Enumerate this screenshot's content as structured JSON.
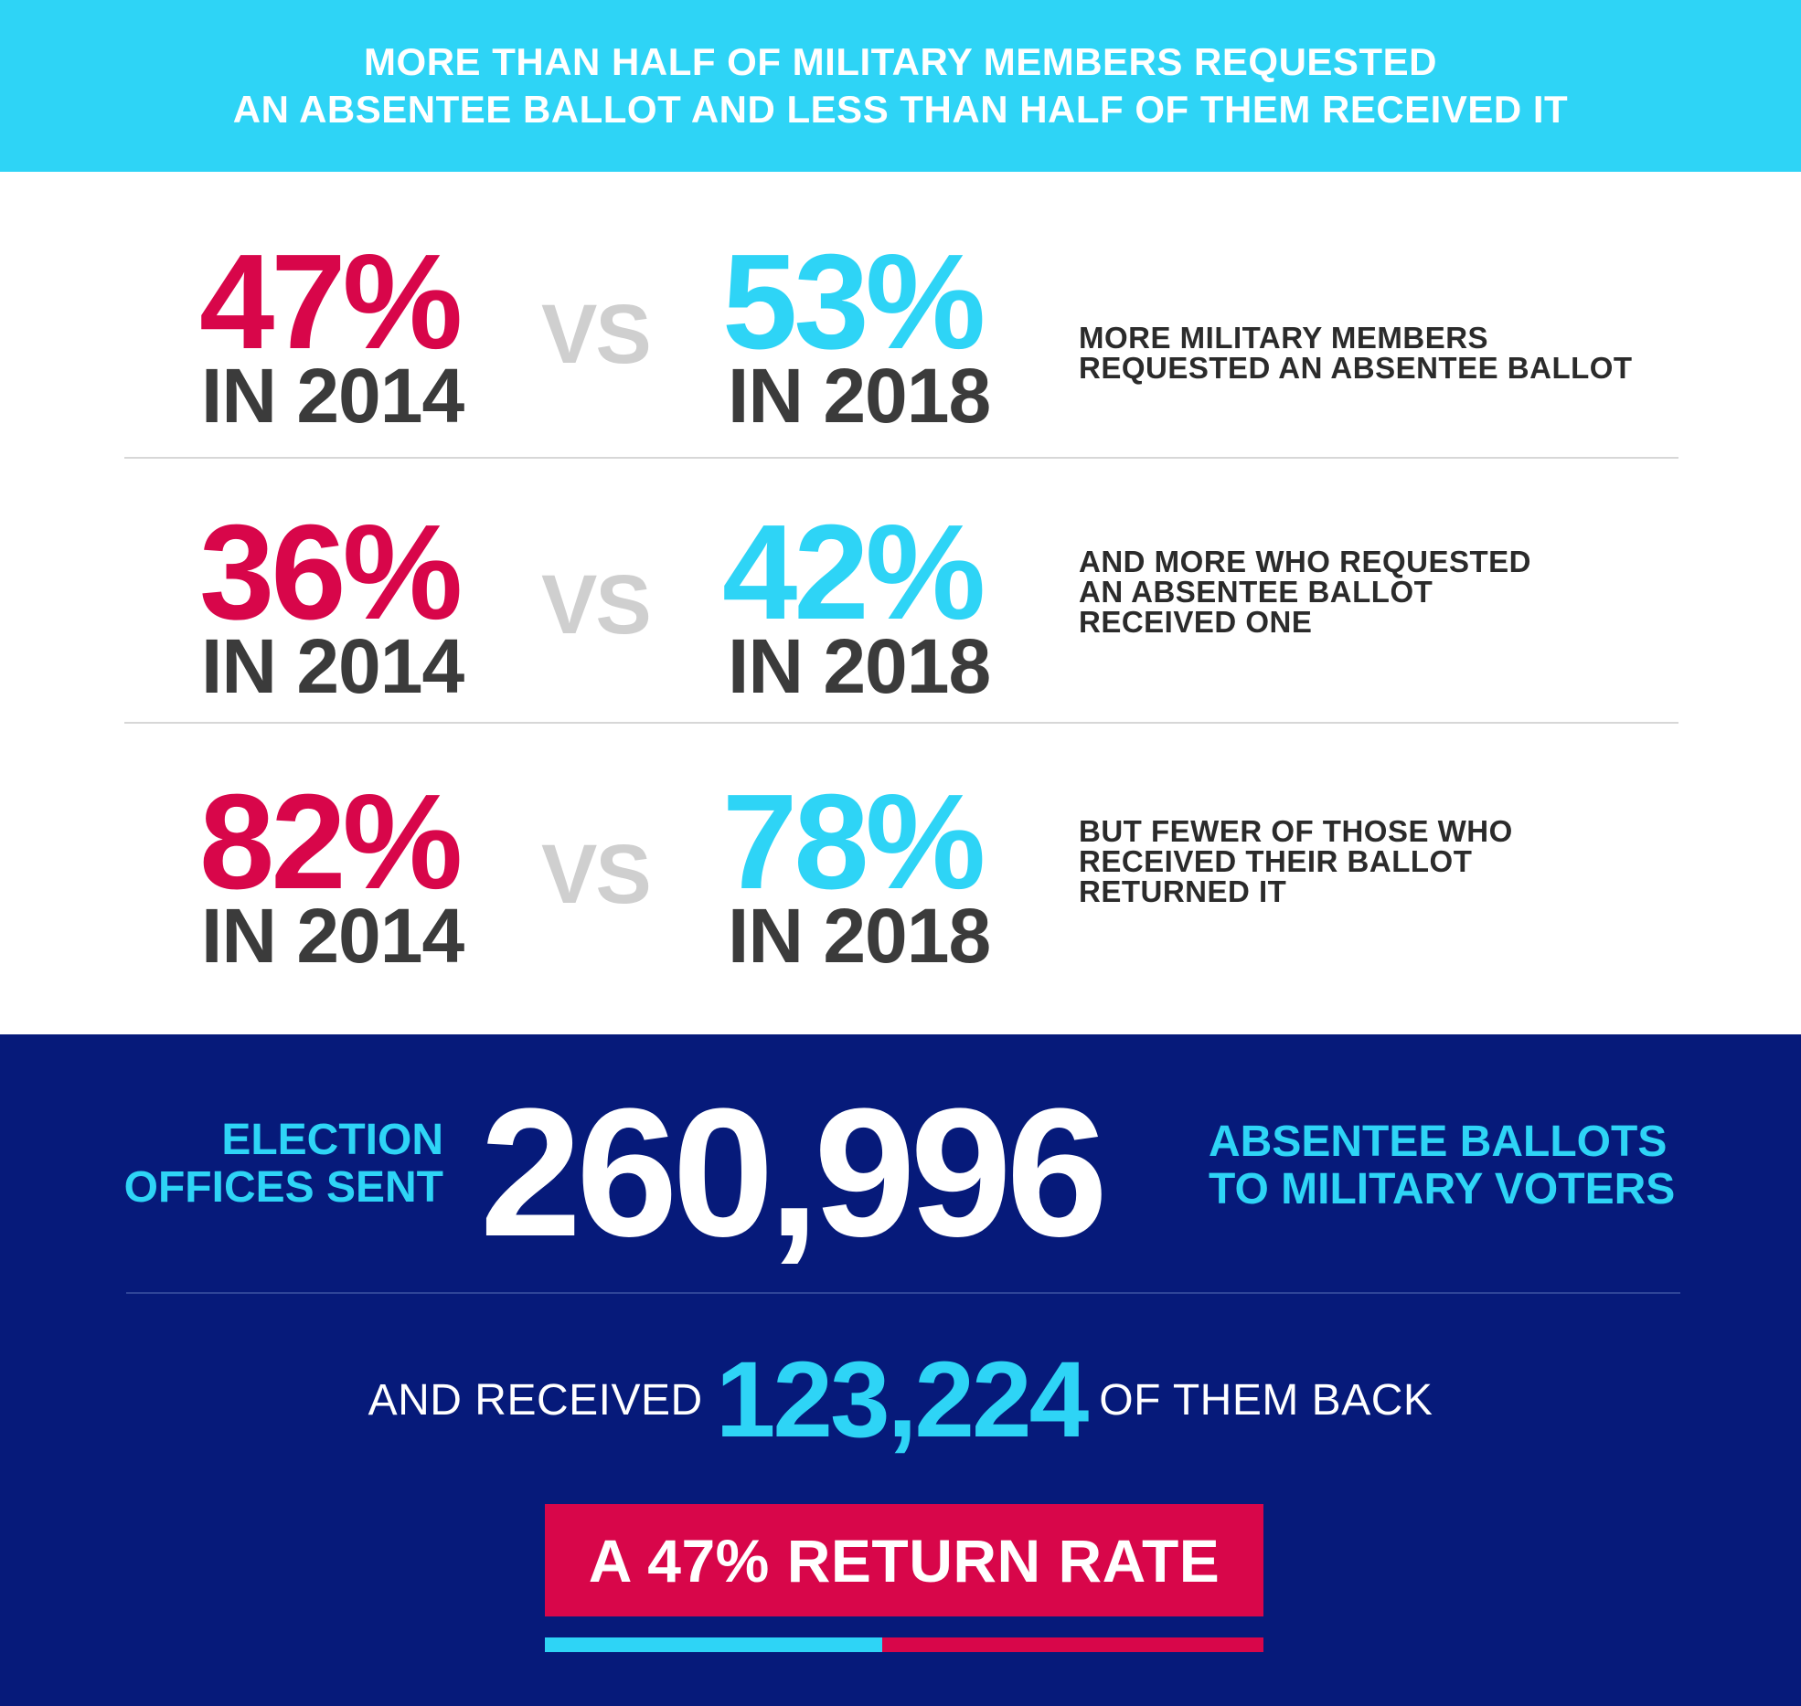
{
  "header": {
    "line1": "MORE THAN HALF OF MILITARY MEMBERS REQUESTED",
    "line2": "AN ABSENTEE BALLOT AND LESS THAN HALF OF THEM RECEIVED IT"
  },
  "stats": [
    {
      "left_value": "47%",
      "left_year": "IN 2014",
      "vs": "VS",
      "right_value": "53%",
      "right_year": "IN 2018",
      "desc": [
        "MORE MILITARY MEMBERS",
        "REQUESTED AN ABSENTEE BALLOT"
      ]
    },
    {
      "left_value": "36%",
      "left_year": "IN 2014",
      "vs": "VS",
      "right_value": "42%",
      "right_year": "IN 2018",
      "desc": [
        "AND MORE WHO REQUESTED",
        "AN ABSENTEE BALLOT",
        "RECEIVED ONE"
      ]
    },
    {
      "left_value": "82%",
      "left_year": "IN 2014",
      "vs": "VS",
      "right_value": "78%",
      "right_year": "IN 2018",
      "desc": [
        "BUT FEWER OF THOSE WHO",
        "RECEIVED THEIR BALLOT",
        "RETURNED IT"
      ]
    }
  ],
  "sent": {
    "lead": [
      "ELECTION",
      "OFFICES SENT"
    ],
    "number": "260,996",
    "trail": [
      "ABSENTEE BALLOTS",
      "TO MILITARY VOTERS"
    ]
  },
  "received": {
    "lead": "AND RECEIVED",
    "number": "123,224",
    "trail": "OF THEM BACK"
  },
  "return_rate": {
    "label": "A 47% RETURN RATE",
    "fraction": 0.47
  },
  "colors": {
    "cyan": "#2ed4f6",
    "red": "#d8064a",
    "navy": "#061a7a",
    "gray_text": "#3b3b3b",
    "vs_gray": "#cfcfcf"
  }
}
